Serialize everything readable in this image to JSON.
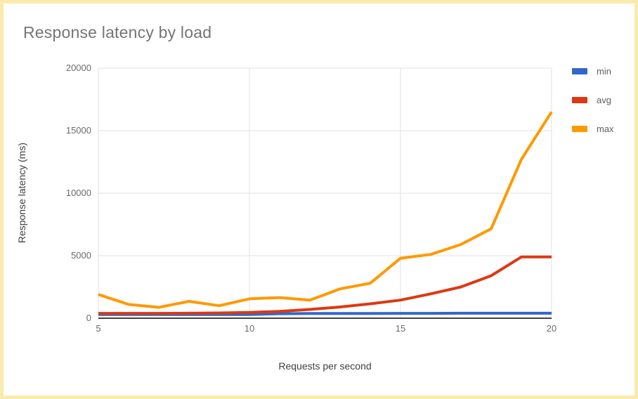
{
  "title": "Response latency by load",
  "colors": {
    "background": "#FFFFFF",
    "frame_border": "#F9EBAC",
    "grid": "#E2E2E2",
    "axis_line": "#424242",
    "title_text": "#757575",
    "tick_text": "#6B6B6B",
    "axis_title_text": "#404040",
    "legend_text": "#5F5F5F",
    "series_min": "#3366CC",
    "series_avg": "#DC3912",
    "series_max": "#FF9900"
  },
  "legend": {
    "position": "right",
    "items": [
      {
        "label": "min",
        "color": "#3366CC"
      },
      {
        "label": "avg",
        "color": "#DC3912"
      },
      {
        "label": "max",
        "color": "#FF9900"
      }
    ]
  },
  "chart_data": {
    "type": "line",
    "title": "Response latency by load",
    "xlabel": "Requests per second",
    "ylabel": "Response latency (ms)",
    "x": [
      5,
      6,
      7,
      8,
      9,
      10,
      11,
      12,
      13,
      14,
      15,
      16,
      17,
      18,
      19,
      20
    ],
    "series": [
      {
        "name": "min",
        "color": "#3366CC",
        "values": [
          300,
          290,
          290,
          290,
          290,
          300,
          360,
          380,
          380,
          380,
          390,
          390,
          400,
          400,
          400,
          400
        ]
      },
      {
        "name": "avg",
        "color": "#DC3912",
        "values": [
          390,
          390,
          390,
          400,
          420,
          460,
          550,
          700,
          900,
          1150,
          1450,
          1950,
          2500,
          3400,
          4900,
          4900
        ]
      },
      {
        "name": "max",
        "color": "#FF9900",
        "values": [
          1900,
          1100,
          870,
          1350,
          1000,
          1550,
          1650,
          1450,
          2350,
          2800,
          4800,
          5100,
          5900,
          7150,
          12700,
          16500
        ]
      }
    ],
    "xlim": [
      5,
      20
    ],
    "ylim": [
      0,
      20000
    ],
    "x_ticks": [
      5,
      10,
      15,
      20
    ],
    "y_ticks": [
      0,
      5000,
      10000,
      15000,
      20000
    ],
    "grid": true,
    "legend_position": "right"
  }
}
